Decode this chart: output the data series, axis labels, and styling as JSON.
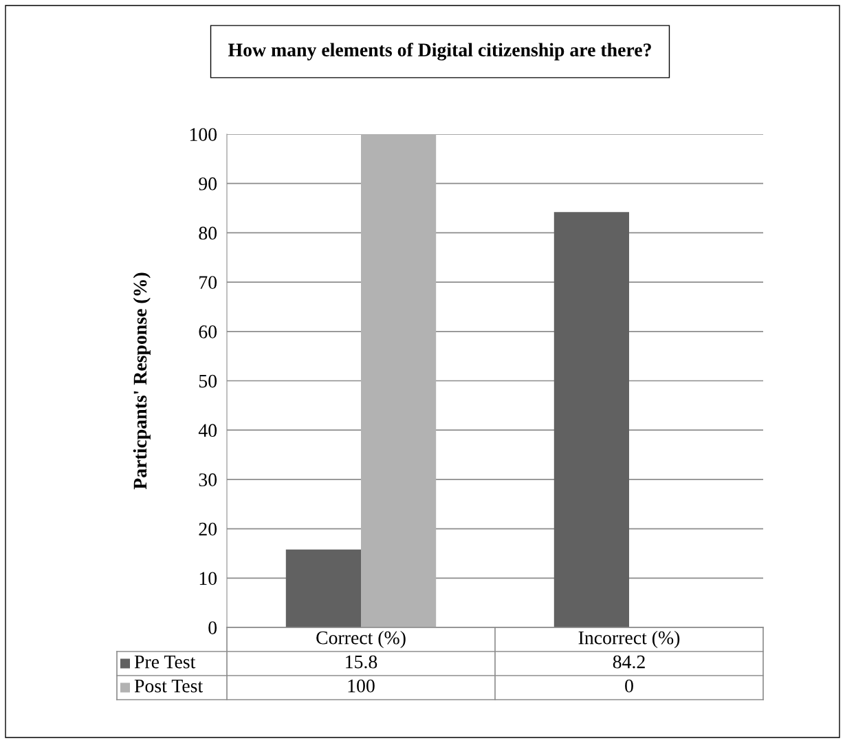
{
  "chart_data": {
    "type": "bar",
    "title": "How many elements of Digital citizenship are there?",
    "ylabel": "Particpants' Response (%)",
    "categories": [
      "Correct (%)",
      "Incorrect (%)"
    ],
    "series": [
      {
        "name": "Pre Test",
        "color": "#616161",
        "values": [
          15.8,
          84.2
        ]
      },
      {
        "name": "Post Test",
        "color": "#b2b2b2",
        "values": [
          100,
          0
        ]
      }
    ],
    "ylim": [
      0,
      100
    ],
    "yticks": [
      0,
      10,
      20,
      30,
      40,
      50,
      60,
      70,
      80,
      90,
      100
    ],
    "grid": "y",
    "legend": "bottom",
    "data_labels": true
  }
}
